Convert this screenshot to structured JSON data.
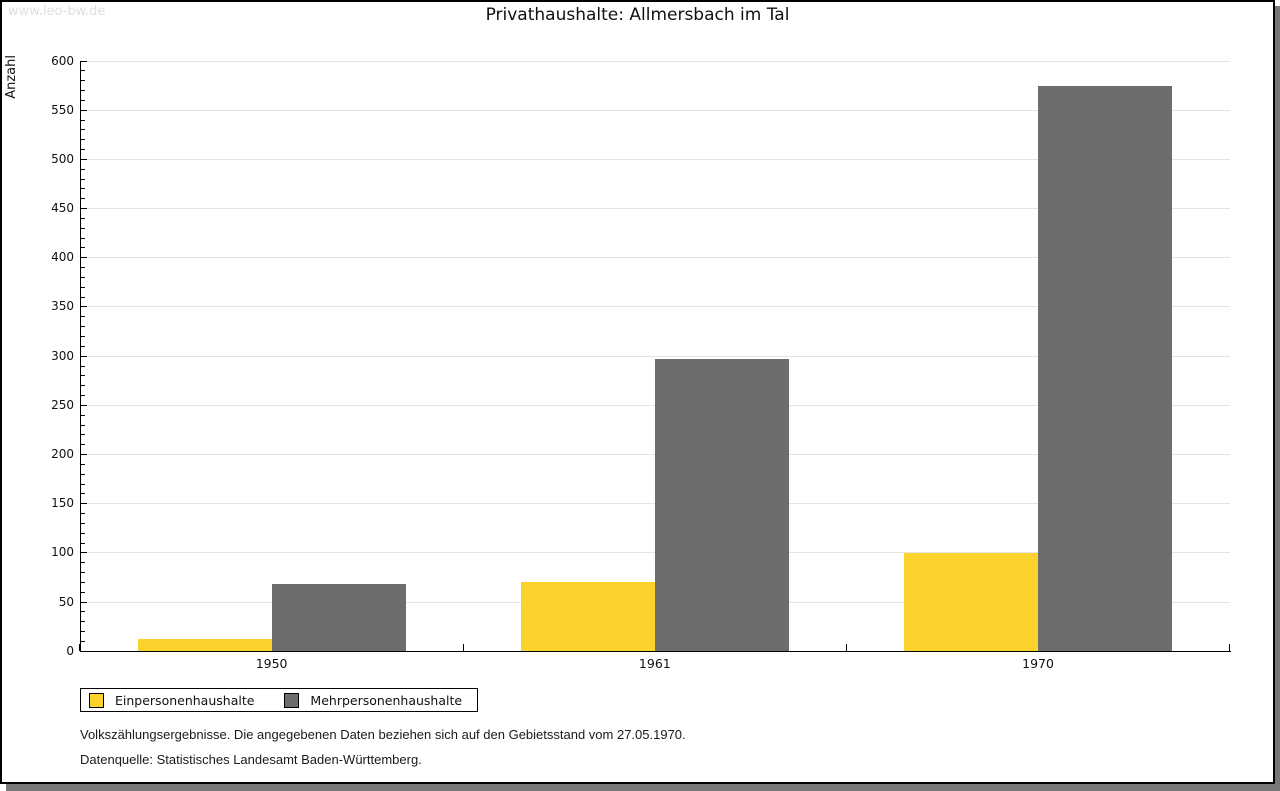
{
  "watermark": "www.leo-bw.de",
  "title": "Privathaushalte: Allmersbach im Tal",
  "chart_data": {
    "type": "bar",
    "title": "Privathaushalte: Allmersbach im Tal",
    "categories": [
      "1950",
      "1961",
      "1970"
    ],
    "series": [
      {
        "name": "Einpersonenhaushalte",
        "color": "#FCD32D",
        "values": [
          13,
          70,
          100
        ]
      },
      {
        "name": "Mehrpersonenhaushalte",
        "color": "#6D6D6D",
        "values": [
          68,
          297,
          575
        ]
      }
    ],
    "xlabel": "",
    "ylabel": "Anzahl",
    "ylim": [
      0,
      600
    ],
    "ytick_major": 50,
    "ytick_minor": 10,
    "grid": true,
    "legend_position": "bottom-left"
  },
  "colors": {
    "grid": "#e4e4e4",
    "axis": "#000000",
    "watermark": "#dedede",
    "shadow": "#787878",
    "frame_border": "#000000"
  },
  "footer": {
    "line1": "Volkszählungsergebnisse. Die angegebenen Daten beziehen sich auf den Gebietsstand vom 27.05.1970.",
    "line2": "Datenquelle: Statistisches Landesamt Baden-Württemberg."
  }
}
